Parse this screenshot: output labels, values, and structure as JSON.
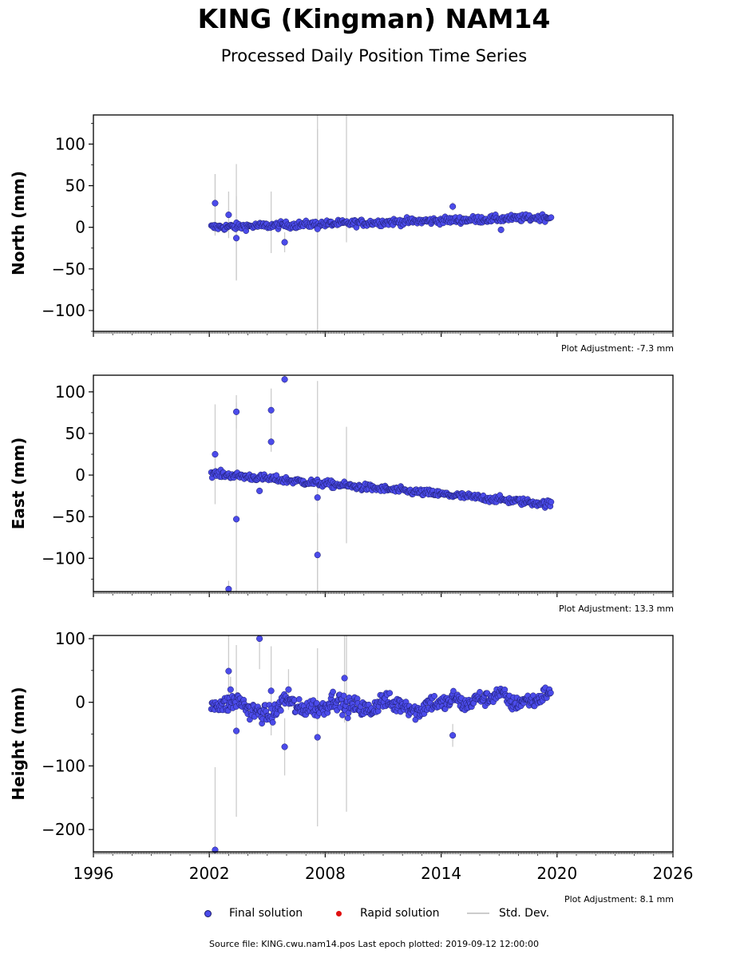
{
  "header": {
    "title": "KING (Kingman) NAM14",
    "subtitle": "Processed Daily Position Time Series"
  },
  "colors": {
    "final": "#4b4bea",
    "final_edge": "#1a1a66",
    "rapid": "#e01010",
    "stddev": "#cccccc"
  },
  "legend": {
    "final_label": "Final solution",
    "rapid_label": "Rapid solution",
    "std_label": "Std. Dev."
  },
  "footer": {
    "source": "Source file: KING.cwu.nam14.pos  Last epoch plotted: 2019-09-12 12:00:00"
  },
  "chart_data": [
    {
      "type": "scatter",
      "ylabel": "North (mm)",
      "adjustment": "Plot Adjustment: -7.3 mm",
      "xlim": [
        1996,
        2026
      ],
      "ylim": [
        -125,
        135
      ],
      "yticks": [
        -100,
        -50,
        0,
        50,
        100
      ],
      "ytick_labels": [
        "−100",
        "−50",
        "0",
        "50",
        "100"
      ],
      "xticks": [
        1996,
        2002,
        2008,
        2014,
        2020,
        2026
      ],
      "x_tick_labels_shown": false,
      "trend": {
        "start": [
          2002.1,
          0
        ],
        "end": [
          2019.7,
          12
        ],
        "scatter": 3
      },
      "outliers": [
        {
          "x": 2002.3,
          "y": 29,
          "err": 35
        },
        {
          "x": 2003.0,
          "y": 15,
          "err": 28
        },
        {
          "x": 2003.4,
          "y": -13,
          "err": 50
        },
        {
          "x": 2005.9,
          "y": -18,
          "err": 12
        },
        {
          "x": 2007.6,
          "y": -2,
          "err": 120
        },
        {
          "x": 2014.6,
          "y": 25,
          "err": 5
        },
        {
          "x": 2017.1,
          "y": -3,
          "err": 4
        }
      ],
      "error_bars_only": [
        {
          "x": 2002.3,
          "low": -10,
          "high": 64
        },
        {
          "x": 2003.4,
          "low": -64,
          "high": 76
        },
        {
          "x": 2005.2,
          "low": -31,
          "high": 43
        },
        {
          "x": 2007.6,
          "low": -125,
          "high": 135
        },
        {
          "x": 2009.1,
          "low": -18,
          "high": 135
        }
      ]
    },
    {
      "type": "scatter",
      "ylabel": "East (mm)",
      "adjustment": "Plot Adjustment: 13.3 mm",
      "xlim": [
        1996,
        2026
      ],
      "ylim": [
        -140,
        120
      ],
      "yticks": [
        -100,
        -50,
        0,
        50,
        100
      ],
      "ytick_labels": [
        "−100",
        "−50",
        "0",
        "50",
        "100"
      ],
      "xticks": [
        1996,
        2002,
        2008,
        2014,
        2020,
        2026
      ],
      "x_tick_labels_shown": false,
      "trend": {
        "start": [
          2002.1,
          2
        ],
        "end": [
          2019.7,
          -35
        ],
        "scatter": 3
      },
      "outliers": [
        {
          "x": 2002.3,
          "y": 25,
          "err": 60
        },
        {
          "x": 2003.0,
          "y": -137,
          "err": 10
        },
        {
          "x": 2003.4,
          "y": 76,
          "err": 20
        },
        {
          "x": 2003.4,
          "y": -53,
          "err": 140
        },
        {
          "x": 2004.6,
          "y": -19,
          "err": 4
        },
        {
          "x": 2005.2,
          "y": 78,
          "err": 26
        },
        {
          "x": 2005.2,
          "y": 40,
          "err": 12
        },
        {
          "x": 2005.9,
          "y": 115,
          "err": 5
        },
        {
          "x": 2007.6,
          "y": -27,
          "err": 140
        },
        {
          "x": 2007.6,
          "y": -96,
          "err": 50
        }
      ],
      "error_bars_only": [
        {
          "x": 2009.1,
          "low": -82,
          "high": 58
        }
      ]
    },
    {
      "type": "scatter",
      "ylabel": "Height (mm)",
      "adjustment": "Plot Adjustment: 8.1 mm",
      "xlim": [
        1996,
        2026
      ],
      "ylim": [
        -235,
        105
      ],
      "yticks": [
        -200,
        -100,
        0,
        100
      ],
      "ytick_labels": [
        "−200",
        "−100",
        "0",
        "100"
      ],
      "xticks": [
        1996,
        2002,
        2008,
        2014,
        2020,
        2026
      ],
      "x_tick_labels": [
        "1996",
        "2002",
        "2008",
        "2014",
        "2020",
        "2026"
      ],
      "x_tick_labels_shown": true,
      "segments": [
        {
          "x0": 2002.1,
          "x1": 2014.6,
          "mean": -5,
          "scatter": 10
        },
        {
          "x0": 2014.6,
          "x1": 2019.7,
          "mean": 5,
          "scatter": 8
        }
      ],
      "outliers": [
        {
          "x": 2002.3,
          "y": -232,
          "err": 130
        },
        {
          "x": 2003.0,
          "y": 49,
          "err": 60
        },
        {
          "x": 2003.1,
          "y": 20,
          "err": 20
        },
        {
          "x": 2003.4,
          "y": -45,
          "err": 135
        },
        {
          "x": 2004.6,
          "y": 100,
          "err": 48
        },
        {
          "x": 2005.2,
          "y": 18,
          "err": 70
        },
        {
          "x": 2005.9,
          "y": -70,
          "err": 45
        },
        {
          "x": 2006.1,
          "y": 20,
          "err": 32
        },
        {
          "x": 2007.6,
          "y": -55,
          "err": 140
        },
        {
          "x": 2009.0,
          "y": 38,
          "err": 70
        },
        {
          "x": 2014.6,
          "y": -52,
          "err": 18
        }
      ],
      "error_bars_only": [
        {
          "x": 2009.1,
          "low": -172,
          "high": 105
        }
      ]
    }
  ]
}
